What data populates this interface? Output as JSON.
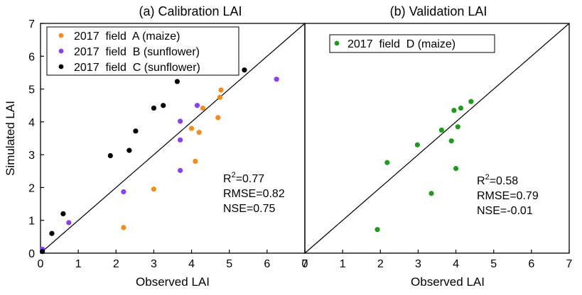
{
  "chart_data": [
    {
      "type": "scatter",
      "title": "(a) Calibration LAI",
      "xlabel": "Observed LAI",
      "ylabel": "Simulated LAI",
      "xlim": [
        0,
        7
      ],
      "ylim": [
        0,
        7
      ],
      "xticks": [
        "0",
        "1",
        "2",
        "3",
        "4",
        "5",
        "6",
        "7"
      ],
      "yticks": [
        "0",
        "1",
        "2",
        "3",
        "4",
        "5",
        "6",
        "7"
      ],
      "reference_line": "1:1",
      "legend_position": "top-left",
      "series": [
        {
          "name": "2017  field  A (maize)",
          "color": "#f28c1e",
          "points": [
            [
              2.2,
              0.78
            ],
            [
              3.0,
              1.95
            ],
            [
              4.1,
              2.8
            ],
            [
              4.0,
              3.8
            ],
            [
              4.2,
              3.68
            ],
            [
              4.3,
              4.42
            ],
            [
              4.7,
              4.13
            ],
            [
              4.75,
              4.75
            ],
            [
              4.78,
              4.97
            ],
            [
              0.05,
              0.08
            ]
          ]
        },
        {
          "name": "2017  field  B (sunflower)",
          "color": "#8a3ff0",
          "points": [
            [
              0.05,
              0.12
            ],
            [
              0.75,
              0.93
            ],
            [
              2.2,
              1.87
            ],
            [
              3.7,
              2.52
            ],
            [
              3.7,
              3.45
            ],
            [
              3.7,
              4.02
            ],
            [
              4.15,
              4.5
            ],
            [
              6.25,
              5.3
            ]
          ]
        },
        {
          "name": "2017  field  C (sunflower)",
          "color": "#000000",
          "points": [
            [
              0.05,
              0.05
            ],
            [
              0.3,
              0.6
            ],
            [
              0.6,
              1.2
            ],
            [
              1.85,
              2.97
            ],
            [
              2.35,
              3.13
            ],
            [
              2.52,
              3.72
            ],
            [
              3.0,
              4.42
            ],
            [
              3.25,
              4.5
            ],
            [
              3.62,
              5.23
            ],
            [
              5.4,
              5.58
            ]
          ]
        }
      ],
      "stats": {
        "r2_label": "R",
        "r2_sup": "2",
        "r2_value": "=0.77",
        "rmse": "RMSE=0.82",
        "nse": "NSE=0.75"
      }
    },
    {
      "type": "scatter",
      "title": "(b) Validation LAI",
      "xlabel": "Observed LAI",
      "ylabel": "",
      "xlim": [
        0,
        7
      ],
      "ylim": [
        0,
        7
      ],
      "xticks": [
        "0",
        "1",
        "2",
        "3",
        "4",
        "5",
        "6",
        "7"
      ],
      "reference_line": "1:1",
      "legend_position": "top-left",
      "series": [
        {
          "name": "2017  field  D (maize)",
          "color": "#1f9a1f",
          "points": [
            [
              1.92,
              0.72
            ],
            [
              2.18,
              2.76
            ],
            [
              2.98,
              3.3
            ],
            [
              3.35,
              1.82
            ],
            [
              3.62,
              3.75
            ],
            [
              3.88,
              3.42
            ],
            [
              3.95,
              4.35
            ],
            [
              4.0,
              2.58
            ],
            [
              4.05,
              3.85
            ],
            [
              4.13,
              4.42
            ],
            [
              4.4,
              4.62
            ]
          ]
        }
      ],
      "stats": {
        "r2_label": "R",
        "r2_sup": "2",
        "r2_value": "=0.58",
        "rmse": "RMSE=0.79",
        "nse": "NSE=-0.01"
      }
    }
  ]
}
